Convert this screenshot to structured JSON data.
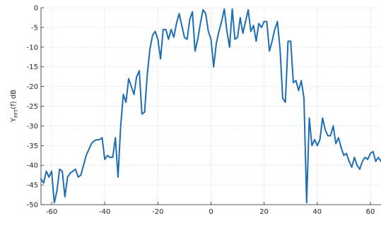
{
  "chart_data": {
    "type": "line",
    "title": "",
    "xlabel": "",
    "ylabel": "Y_FFT(f) dB",
    "ylabel_parts": {
      "main": "Y",
      "sub": "FFT",
      "rest": "(f) dB"
    },
    "xlim": [
      -64,
      64
    ],
    "ylim": [
      -50,
      0
    ],
    "x_ticks": [
      -60,
      -40,
      -20,
      0,
      20,
      40,
      60
    ],
    "y_ticks": [
      0,
      -5,
      -10,
      -15,
      -20,
      -25,
      -30,
      -35,
      -40,
      -45,
      -50
    ],
    "grid": true,
    "line_color": "#1f6db3",
    "series": [
      {
        "x": [
          -64,
          -63,
          -62,
          -61,
          -60,
          -59,
          -58,
          -57,
          -56,
          -55,
          -54,
          -53,
          -52,
          -51,
          -50,
          -49,
          -48,
          -47,
          -46,
          -45,
          -44,
          -43,
          -42,
          -41,
          -40,
          -39,
          -38,
          -37,
          -36,
          -35,
          -34,
          -33,
          -32,
          -31,
          -30,
          -29,
          -28,
          -27,
          -26,
          -25,
          -24,
          -23,
          -22,
          -21,
          -20,
          -19,
          -18,
          -17,
          -16,
          -15,
          -14,
          -13,
          -12,
          -11,
          -10,
          -9,
          -8,
          -7,
          -6,
          -5,
          -4,
          -3,
          -2,
          -1,
          0,
          1,
          2,
          3,
          4,
          5,
          6,
          7,
          8,
          9,
          10,
          11,
          12,
          13,
          14,
          15,
          16,
          17,
          18,
          19,
          20,
          21,
          22,
          23,
          24,
          25,
          26,
          27,
          28,
          29,
          30,
          31,
          32,
          33,
          34,
          35,
          36,
          37,
          38,
          39,
          40,
          41,
          42,
          43,
          44,
          45,
          46,
          47,
          48,
          49,
          50,
          51,
          52,
          53,
          54,
          55,
          56,
          57,
          58,
          59,
          60,
          61,
          62,
          63,
          64
        ],
        "values": [
          -43.5,
          -44.5,
          -41.5,
          -43,
          -41.5,
          -49.5,
          -46.5,
          -41,
          -41.5,
          -48,
          -43,
          -42,
          -41.5,
          -41,
          -43,
          -42.5,
          -40,
          -37.5,
          -36,
          -34.5,
          -33.8,
          -33.5,
          -33.5,
          -33,
          -38.5,
          -37.5,
          -38,
          -38,
          -33,
          -43,
          -30,
          -22,
          -24,
          -18,
          -20,
          -22,
          -17.5,
          -16,
          -27,
          -26.5,
          -17,
          -10.5,
          -7,
          -6,
          -8,
          -13,
          -5.5,
          -5.5,
          -8,
          -5.5,
          -7.5,
          -4,
          -1.5,
          -4.5,
          -7.5,
          -8,
          -3,
          -1,
          -11,
          -8,
          -4,
          -0.5,
          -1.5,
          -6,
          -8,
          -15,
          -9,
          -6,
          -3.5,
          -0.3,
          -6,
          -10,
          -0.3,
          -8,
          -7.5,
          -2.5,
          -6.5,
          -3.5,
          -0.5,
          -6,
          -4.5,
          -8.5,
          -4,
          -5,
          -3.5,
          -3.5,
          -11,
          -8.5,
          -5.5,
          -3.5,
          -10.5,
          -23,
          -24,
          -8.5,
          -8.5,
          -19,
          -18.5,
          -21,
          -18.5,
          -23,
          -49.5,
          -28,
          -35,
          -33.5,
          -35,
          -33.5,
          -28,
          -31,
          -32.5,
          -32.5,
          -30,
          -34.5,
          -33,
          -35.5,
          -37.5,
          -37,
          -39,
          -40.5,
          -38,
          -40,
          -41,
          -39,
          -38,
          -38.5,
          -37,
          -36.5,
          -39,
          -38,
          -39
        ]
      }
    ]
  }
}
